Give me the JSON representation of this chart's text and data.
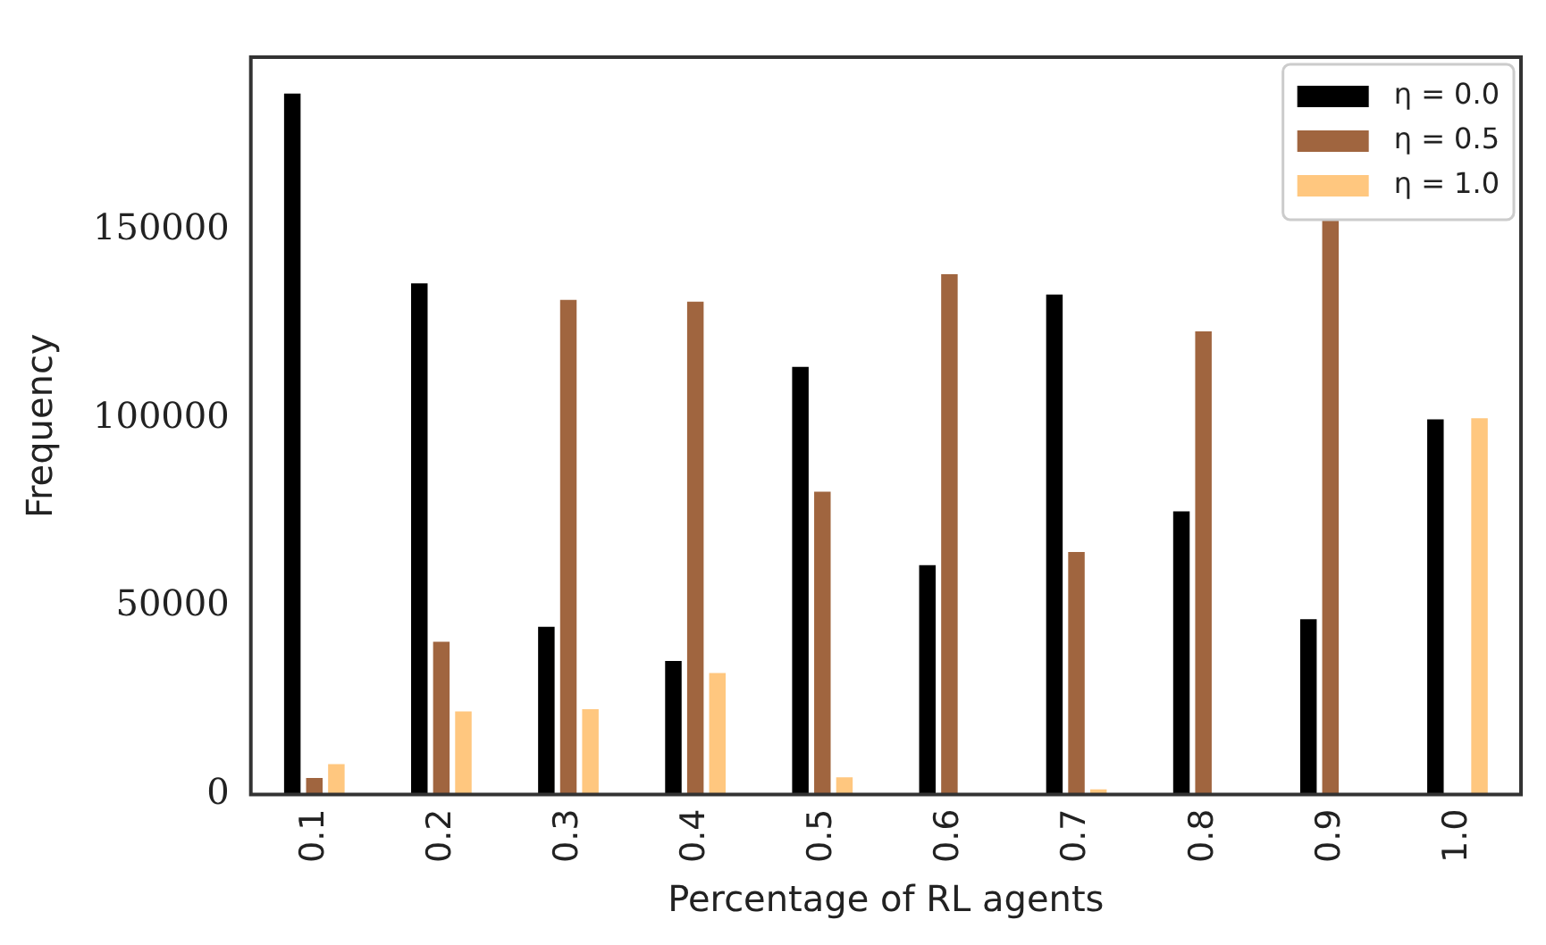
{
  "chart_data": {
    "type": "bar",
    "xlabel": "Percentage of RL agents",
    "ylabel": "Frequency",
    "categories": [
      "0.1",
      "0.2",
      "0.3",
      "0.4",
      "0.5",
      "0.6",
      "0.7",
      "0.8",
      "0.9",
      "1.0"
    ],
    "series": [
      {
        "name": "η = 0.0",
        "color": "#000000",
        "values": [
          186300,
          135900,
          44600,
          35500,
          113700,
          61000,
          132900,
          75300,
          46600,
          99700
        ]
      },
      {
        "name": "η = 0.5",
        "color": "#a0653f",
        "values": [
          4400,
          40600,
          131500,
          131000,
          80500,
          138300,
          64500,
          123100,
          152800,
          0
        ]
      },
      {
        "name": "η = 1.0",
        "color": "#ffc77f",
        "values": [
          8100,
          22100,
          22700,
          32300,
          4600,
          0,
          1400,
          0,
          0,
          100000
        ]
      }
    ],
    "ylim": [
      0,
      196000
    ],
    "yticks": [
      0,
      50000,
      100000,
      150000
    ],
    "grid": false,
    "legend": "top right"
  }
}
